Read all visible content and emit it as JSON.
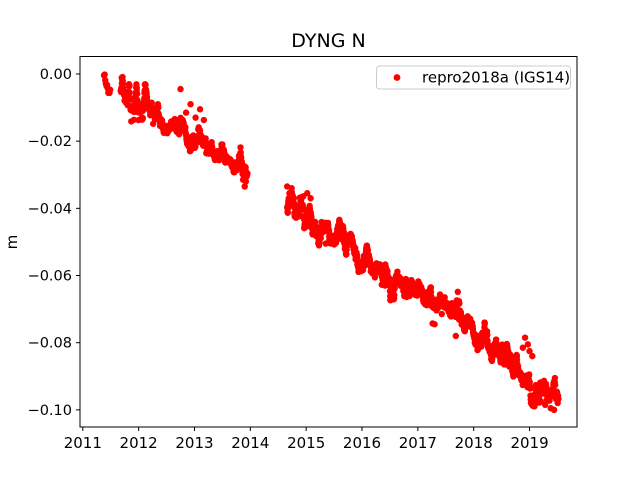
{
  "window": {
    "background": "#ffffff"
  },
  "chart_data": {
    "type": "scatter",
    "title": "DYNG N",
    "ylabel": "m",
    "grid": false,
    "legend": {
      "position": "upper right",
      "entries": [
        {
          "label": "repro2018a (IGS14)",
          "marker": "dot-icon",
          "color": "#ff0000"
        }
      ]
    },
    "xlim": [
      2010.95,
      2019.85
    ],
    "ylim": [
      -0.1051,
      0.0052
    ],
    "xticks": [
      2011,
      2012,
      2013,
      2014,
      2015,
      2016,
      2017,
      2018,
      2019
    ],
    "xtick_labels": [
      "2011",
      "2012",
      "2013",
      "2014",
      "2015",
      "2016",
      "2017",
      "2018",
      "2019"
    ],
    "yticks": [
      0.0,
      -0.02,
      -0.04,
      -0.06,
      -0.08,
      -0.1
    ],
    "ytick_labels": [
      "0.00",
      "−0.02",
      "−0.04",
      "−0.06",
      "−0.08",
      "−0.10"
    ],
    "series": [
      {
        "name": "repro2018a (IGS14)",
        "color": "#ff0000",
        "marker": "point",
        "marker_diameter_px": 6.4,
        "seed": 11,
        "segments": [
          {
            "from": 2011.38,
            "to": 2011.5,
            "step": 0.011
          },
          {
            "from": 2011.68,
            "to": 2013.95,
            "step": 0.004
          },
          {
            "from": 2014.66,
            "to": 2019.52,
            "step": 0.0035
          }
        ],
        "trend": [
          [
            2011.38,
            -0.001
          ],
          [
            2011.5,
            -0.003
          ],
          [
            2011.68,
            -0.0045
          ],
          [
            2011.9,
            -0.006
          ],
          [
            2012.0,
            -0.008
          ],
          [
            2012.15,
            -0.011
          ],
          [
            2012.3,
            -0.013
          ],
          [
            2012.45,
            -0.0145
          ],
          [
            2012.6,
            -0.016
          ],
          [
            2012.8,
            -0.0165
          ],
          [
            2013.0,
            -0.02
          ],
          [
            2013.15,
            -0.0225
          ],
          [
            2013.3,
            -0.0235
          ],
          [
            2013.5,
            -0.025
          ],
          [
            2013.7,
            -0.0275
          ],
          [
            2013.85,
            -0.028
          ],
          [
            2013.95,
            -0.029
          ],
          [
            2014.66,
            -0.0385
          ],
          [
            2014.85,
            -0.0405
          ],
          [
            2015.0,
            -0.0415
          ],
          [
            2015.2,
            -0.043
          ],
          [
            2015.4,
            -0.046
          ],
          [
            2015.6,
            -0.049
          ],
          [
            2015.8,
            -0.052
          ],
          [
            2016.0,
            -0.055
          ],
          [
            2016.2,
            -0.057
          ],
          [
            2016.4,
            -0.059
          ],
          [
            2016.6,
            -0.0615
          ],
          [
            2016.8,
            -0.0635
          ],
          [
            2017.0,
            -0.0655
          ],
          [
            2017.2,
            -0.0675
          ],
          [
            2017.4,
            -0.069
          ],
          [
            2017.6,
            -0.0715
          ],
          [
            2017.8,
            -0.0745
          ],
          [
            2018.0,
            -0.077
          ],
          [
            2018.2,
            -0.0795
          ],
          [
            2018.4,
            -0.0815
          ],
          [
            2018.6,
            -0.084
          ],
          [
            2018.8,
            -0.087
          ],
          [
            2019.0,
            -0.0905
          ],
          [
            2019.15,
            -0.093
          ],
          [
            2019.3,
            -0.0945
          ],
          [
            2019.45,
            -0.096
          ],
          [
            2019.52,
            -0.0965
          ]
        ],
        "noise": {
          "ar": 0.9,
          "sigma_early": 0.00145,
          "sigma_late": 0.00195,
          "early_until": 2014.3
        },
        "wiggle": [
          [
            0.0008,
            2.3,
            0.9
          ],
          [
            0.0006,
            5.7,
            2.0
          ]
        ],
        "stray": {
          "prob": 0.005,
          "min": 0.0025,
          "range": 0.0045
        },
        "wide_zones": [
          [
            2011.68,
            2012.12,
            1.9
          ],
          [
            2012.9,
            2013.2,
            1.5
          ],
          [
            2013.78,
            2013.95,
            1.5
          ],
          [
            2014.95,
            2015.35,
            1.5
          ],
          [
            2016.3,
            2016.6,
            1.3
          ],
          [
            2017.55,
            2017.85,
            1.4
          ],
          [
            2018.95,
            2019.52,
            1.3
          ]
        ],
        "outliers": [
          [
            2012.75,
            -0.0045
          ],
          [
            2012.85,
            -0.0115
          ],
          [
            2012.93,
            -0.009
          ],
          [
            2013.02,
            -0.013
          ],
          [
            2013.1,
            -0.0105
          ],
          [
            2013.87,
            -0.0315
          ],
          [
            2013.9,
            -0.0335
          ],
          [
            2013.92,
            -0.032
          ],
          [
            2014.66,
            -0.0335
          ],
          [
            2014.7,
            -0.0355
          ],
          [
            2014.74,
            -0.034
          ],
          [
            2014.78,
            -0.037
          ],
          [
            2015.02,
            -0.0355
          ],
          [
            2015.08,
            -0.037
          ],
          [
            2015.35,
            -0.0505
          ],
          [
            2017.3,
            -0.0745
          ],
          [
            2017.68,
            -0.078
          ],
          [
            2018.88,
            -0.0815
          ],
          [
            2018.92,
            -0.0785
          ],
          [
            2018.97,
            -0.0805
          ],
          [
            2019.0,
            -0.0825
          ],
          [
            2019.05,
            -0.084
          ],
          [
            2019.2,
            -0.0975
          ],
          [
            2019.28,
            -0.0985
          ],
          [
            2019.38,
            -0.0995
          ],
          [
            2019.44,
            -0.1
          ]
        ]
      }
    ]
  }
}
